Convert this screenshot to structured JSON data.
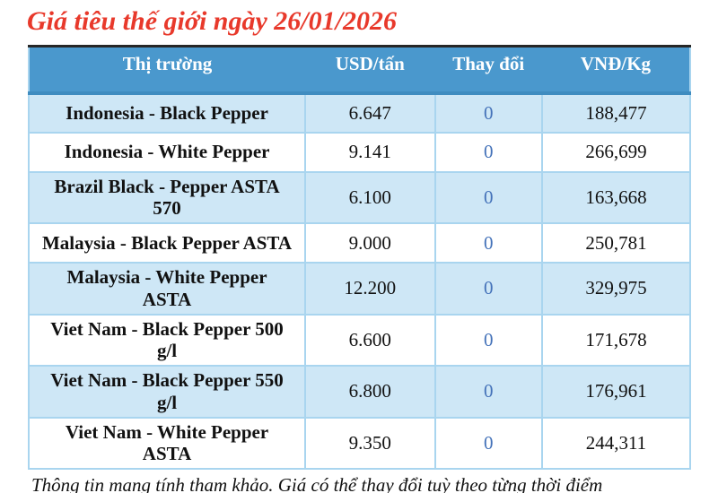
{
  "title": "Giá tiêu thế giới ngày 26/01/2026",
  "footnote": "Thông tin mang tính tham khảo. Giá có thể thay đổi tuỳ theo từng thời điểm",
  "colors": {
    "title_red": "#e8392b",
    "header_bg": "#4a98cd",
    "header_bg_dark": "#3f8cc0",
    "header_text": "#ffffff",
    "row_alt_bg": "#cee7f6",
    "row_bg": "#ffffff",
    "cell_border": "#a9d5ef",
    "change_blue": "#4472b9",
    "top_border": "#262626"
  },
  "chart_data": {
    "type": "table",
    "title": "Giá tiêu thế giới ngày 26/01/2026",
    "columns": [
      "Thị trường",
      "USD/tấn",
      "Thay đổi",
      "VNĐ/Kg"
    ],
    "rows": [
      {
        "market": "Indonesia - Black Pepper",
        "usd": "6.647",
        "change": "0",
        "vnd": "188,477"
      },
      {
        "market": "Indonesia - White Pepper",
        "usd": "9.141",
        "change": "0",
        "vnd": "266,699"
      },
      {
        "market": "Brazil Black - Pepper ASTA 570",
        "usd": "6.100",
        "change": "0",
        "vnd": "163,668"
      },
      {
        "market": "Malaysia - Black Pepper ASTA",
        "usd": "9.000",
        "change": "0",
        "vnd": "250,781"
      },
      {
        "market": "Malaysia - White Pepper ASTA",
        "usd": "12.200",
        "change": "0",
        "vnd": "329,975"
      },
      {
        "market": "Viet Nam - Black Pepper 500 g/l",
        "usd": "6.600",
        "change": "0",
        "vnd": "171,678"
      },
      {
        "market": "Viet Nam - Black Pepper 550 g/l",
        "usd": "6.800",
        "change": "0",
        "vnd": "176,961"
      },
      {
        "market": "Viet Nam - White Pepper ASTA",
        "usd": "9.350",
        "change": "0",
        "vnd": "244,311"
      }
    ],
    "notes": "Change column shows 0 for all markets; alternating light-blue row shading starting with first data row"
  }
}
